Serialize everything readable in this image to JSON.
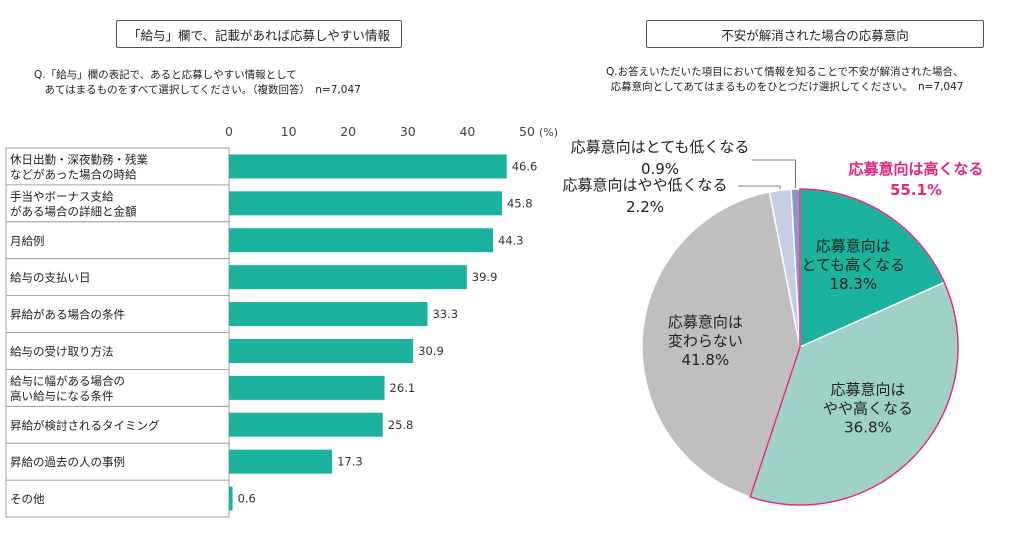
{
  "left": {
    "title": "「給与」欄で、記載があれば応募しやすい情報",
    "question": "Q.「給与」欄の表記で、あると応募しやすい情報として\n　あてはまるものをすべて選択してください。（複数回答）　n=7,047"
  },
  "right": {
    "title": "不安が解消された場合の応募意向",
    "question": "Q.お答えいただいた項目において情報を知ることで不安が解消された場合、\n応募意向としてあてはまるものをひとつだけ選択してください。　n=7,047"
  },
  "chart_data": [
    {
      "type": "bar",
      "orientation": "horizontal",
      "unit_label": "(%)",
      "xlim": [
        0,
        50
      ],
      "ticks": [
        "0",
        "10",
        "20",
        "30",
        "40",
        "50"
      ],
      "categories": [
        "休日出勤・深夜勤務・残業\nなどがあった場合の時給",
        "手当やボーナス支給\nがある場合の詳細と金額",
        "月給例",
        "給与の支払い日",
        "昇給がある場合の条件",
        "給与の受け取り方法",
        "給与に幅がある場合の\n高い給与になる条件",
        "昇給が検討されるタイミング",
        "昇給の過去の人の事例",
        "その他"
      ],
      "values": [
        46.6,
        45.8,
        44.3,
        39.9,
        33.3,
        30.9,
        26.1,
        25.8,
        17.3,
        0.6
      ],
      "value_labels": [
        "46.6",
        "45.8",
        "44.3",
        "39.9",
        "33.3",
        "30.9",
        "26.1",
        "25.8",
        "17.3",
        "0.6"
      ],
      "bar_color": "#1bb39e"
    },
    {
      "type": "pie",
      "slices": [
        {
          "label": "応募意向は\nとても高くなる",
          "value": 18.3,
          "value_label": "18.3%",
          "color": "#1bb39e"
        },
        {
          "label": "応募意向は\nやや高くなる",
          "value": 36.8,
          "value_label": "36.8%",
          "color": "#9fd2c6"
        },
        {
          "label": "応募意向は\n変わらない",
          "value": 41.8,
          "value_label": "41.8%",
          "color": "#bfbfbf"
        },
        {
          "label": "応募意向はやや低くなる",
          "value": 2.2,
          "value_label": "2.2%",
          "color": "#c6cde6"
        },
        {
          "label": "応募意向はとても低くなる",
          "value": 0.9,
          "value_label": "0.9%",
          "color": "#8c96c8"
        }
      ],
      "group_annotation": {
        "label": "応募意向は高くなる",
        "value_label": "55.1%",
        "color": "#e0287f"
      }
    }
  ]
}
